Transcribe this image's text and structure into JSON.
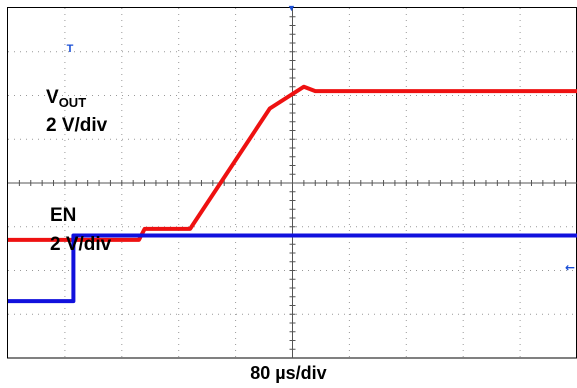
{
  "chart_data": {
    "type": "line",
    "time_per_div": "80 µs/div",
    "x_divisions": 10,
    "y_divisions": 8,
    "x": [
      0,
      1.0,
      2.3,
      2.4,
      2.6,
      3.2,
      4.6,
      5.2,
      5.4,
      6.0,
      7.0,
      8.0,
      9.0,
      10.0
    ],
    "series": [
      {
        "name": "V",
        "name_sub": "OUT",
        "scale": "2 V/div",
        "color": "#ee1111",
        "values": [
          -1.3,
          -1.3,
          -1.3,
          -1.05,
          -1.05,
          -1.05,
          1.7,
          2.2,
          2.1,
          2.1,
          2.1,
          2.1,
          2.1,
          2.1
        ]
      },
      {
        "name": "EN",
        "scale": "2 V/div",
        "color": "#1111dd",
        "x": [
          0,
          1.15,
          1.15,
          10.0
        ],
        "values": [
          -2.7,
          -2.7,
          -1.2,
          -1.2
        ]
      }
    ],
    "markers": {
      "trigger_time_top": "T",
      "trigger_level_arrow": "←"
    }
  }
}
